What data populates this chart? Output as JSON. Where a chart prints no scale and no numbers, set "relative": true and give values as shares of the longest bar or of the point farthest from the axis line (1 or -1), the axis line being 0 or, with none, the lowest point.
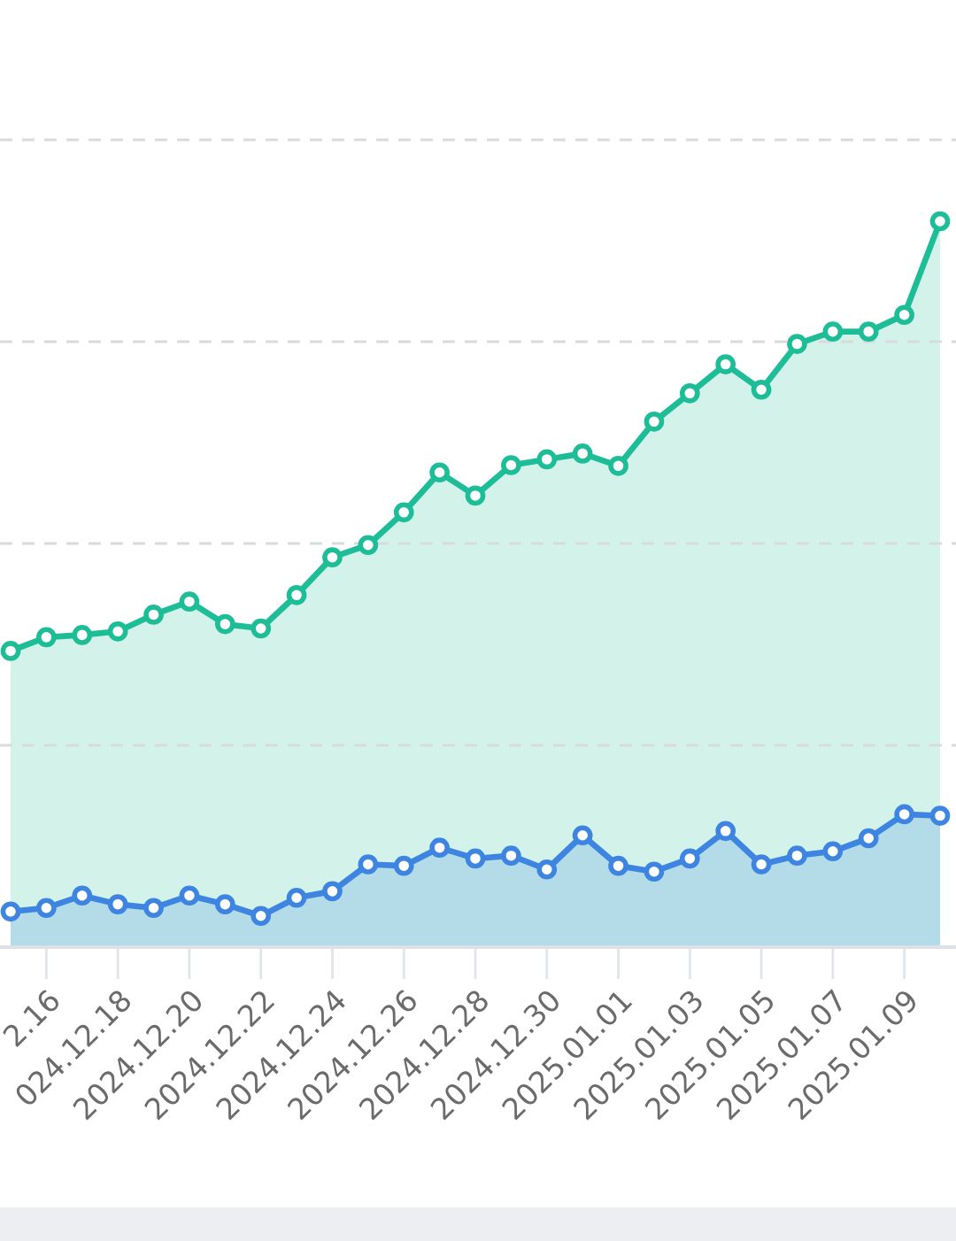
{
  "chart_data": {
    "type": "area",
    "relative": true,
    "marker": "circle",
    "line_style": "solid",
    "grid": "y",
    "categories": [
      null,
      "2.16",
      null,
      "024.12.18",
      null,
      "2024.12.20",
      null,
      "2024.12.22",
      null,
      "2024.12.24",
      null,
      "2024.12.26",
      null,
      "2024.12.28",
      null,
      "2024.12.30",
      null,
      "2025.01.01",
      null,
      "2025.01.03",
      null,
      "2025.01.05",
      null,
      "2025.01.07",
      null,
      "2025.01.09",
      null
    ],
    "series": [
      {
        "color": "#1dbd98",
        "values": [
          0.408,
          0.427,
          0.43,
          0.435,
          0.458,
          0.476,
          0.445,
          0.439,
          0.485,
          0.537,
          0.554,
          0.599,
          0.654,
          0.622,
          0.664,
          0.672,
          0.68,
          0.663,
          0.724,
          0.763,
          0.803,
          0.768,
          0.831,
          0.848,
          0.848,
          0.871,
          1.0
        ]
      },
      {
        "color": "#3d85e0",
        "values": [
          0.049,
          0.054,
          0.071,
          0.059,
          0.054,
          0.071,
          0.059,
          0.043,
          0.068,
          0.077,
          0.114,
          0.112,
          0.137,
          0.122,
          0.126,
          0.107,
          0.154,
          0.112,
          0.104,
          0.122,
          0.16,
          0.114,
          0.126,
          0.132,
          0.15,
          0.183,
          0.181
        ]
      }
    ]
  }
}
